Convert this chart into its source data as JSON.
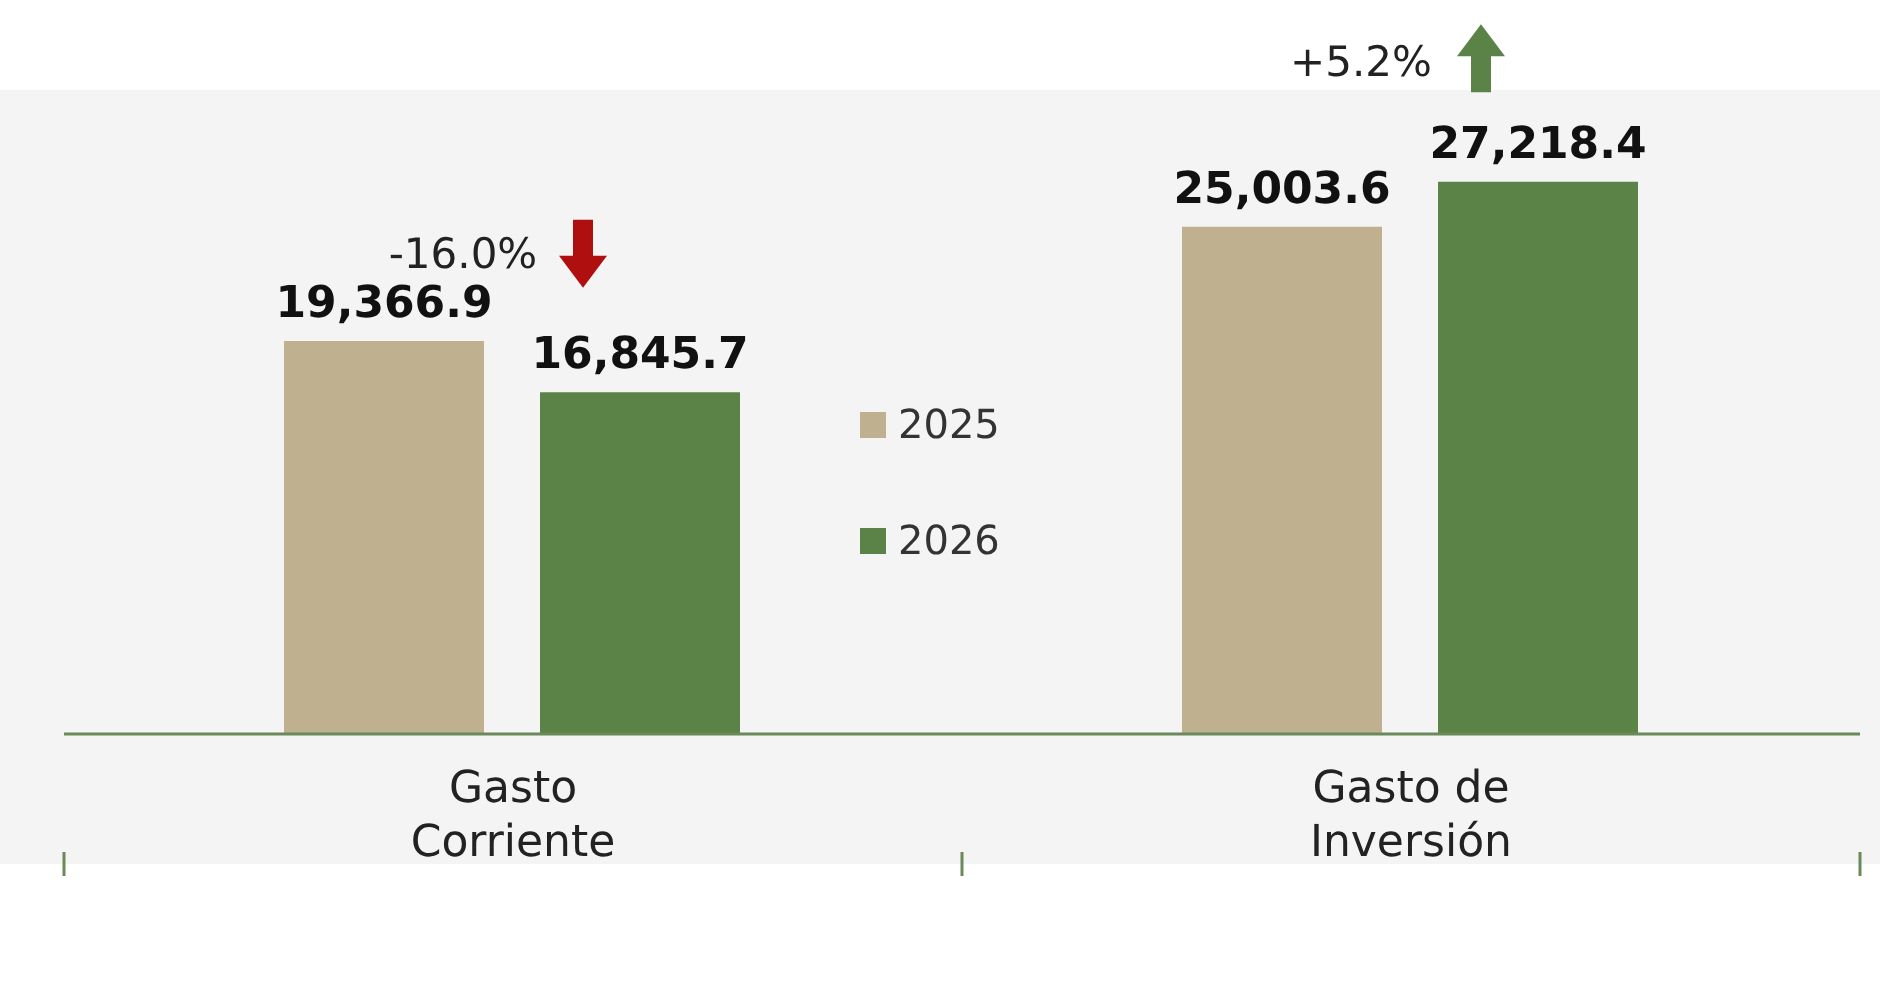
{
  "chart_data": {
    "type": "bar",
    "categories": [
      "Gasto Corriente",
      "Gasto de Inversión"
    ],
    "series": [
      {
        "name": "2025",
        "color": "#bfb190",
        "values": [
          19366.9,
          25003.6
        ],
        "value_labels": [
          "19,366.9",
          "25,003.6"
        ]
      },
      {
        "name": "2026",
        "color": "#5b8347",
        "values": [
          16845.7,
          27218.4
        ],
        "value_labels": [
          "16,845.7",
          "27,218.4"
        ]
      }
    ],
    "legend": "center",
    "annotations": [
      "-16.0%",
      "+5.2%"
    ]
  }
}
